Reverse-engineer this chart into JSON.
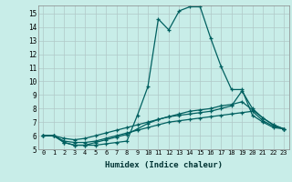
{
  "title": "",
  "xlabel": "Humidex (Indice chaleur)",
  "ylabel": "",
  "background_color": "#c8ede8",
  "grid_color": "#b0c8c8",
  "line_color": "#006060",
  "xlim": [
    -0.5,
    23.5
  ],
  "ylim": [
    5,
    15.6
  ],
  "yticks": [
    5,
    6,
    7,
    8,
    9,
    10,
    11,
    12,
    13,
    14,
    15
  ],
  "xticks": [
    0,
    1,
    2,
    3,
    4,
    5,
    6,
    7,
    8,
    9,
    10,
    11,
    12,
    13,
    14,
    15,
    16,
    17,
    18,
    19,
    20,
    21,
    22,
    23
  ],
  "series": [
    [
      6.0,
      6.0,
      5.5,
      5.3,
      5.3,
      5.3,
      5.4,
      5.5,
      5.6,
      7.5,
      9.6,
      14.6,
      13.8,
      15.2,
      15.5,
      15.5,
      13.2,
      11.1,
      9.4,
      9.4,
      7.5,
      7.0,
      6.6,
      6.5
    ],
    [
      6.0,
      6.0,
      5.5,
      5.3,
      5.3,
      5.5,
      5.7,
      5.9,
      6.1,
      6.5,
      6.9,
      7.2,
      7.4,
      7.5,
      7.6,
      7.7,
      7.8,
      8.0,
      8.2,
      9.3,
      8.0,
      7.3,
      6.8,
      6.5
    ],
    [
      6.0,
      6.0,
      5.6,
      5.5,
      5.5,
      5.6,
      5.8,
      6.0,
      6.2,
      6.4,
      6.6,
      6.8,
      7.0,
      7.1,
      7.2,
      7.3,
      7.4,
      7.5,
      7.6,
      7.7,
      7.8,
      7.1,
      6.7,
      6.5
    ],
    [
      6.0,
      6.0,
      5.8,
      5.7,
      5.8,
      6.0,
      6.2,
      6.4,
      6.6,
      6.8,
      7.0,
      7.2,
      7.4,
      7.6,
      7.8,
      7.9,
      8.0,
      8.2,
      8.3,
      8.5,
      7.9,
      7.3,
      6.8,
      6.5
    ]
  ]
}
